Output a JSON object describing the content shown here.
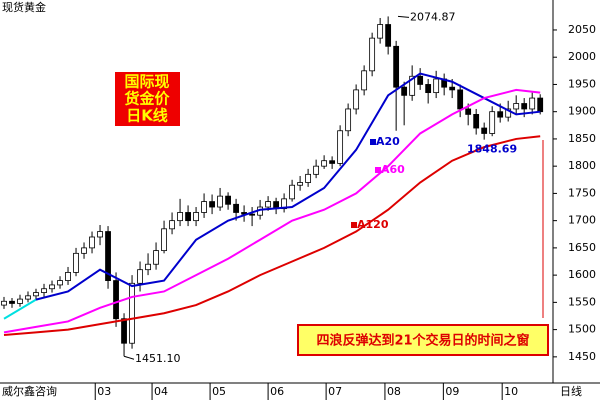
{
  "chart_data": {
    "type": "candlestick",
    "title": "现货黄金",
    "source": "威尔鑫咨询",
    "period": "日线",
    "box_title": [
      "国际现",
      "货金价",
      "日K线"
    ],
    "box_note": "四浪反弹达到21个交易日的时间之窗",
    "annotations": [
      "2074.87",
      "1451.10",
      "1848.69"
    ],
    "ylim": [
      1402,
      2105
    ],
    "yticks": [
      1450,
      1500,
      1550,
      1600,
      1650,
      1700,
      1750,
      1800,
      1850,
      1900,
      1950,
      2000,
      2050
    ],
    "xlim": [
      -0.5,
      68.6
    ],
    "xticks": [
      {
        "value": 11.4,
        "label": "03"
      },
      {
        "value": 18.5,
        "label": "04"
      },
      {
        "value": 25.75,
        "label": "05"
      },
      {
        "value": 33,
        "label": "06"
      },
      {
        "value": 40.25,
        "label": "07"
      },
      {
        "value": 47.6,
        "label": "08"
      },
      {
        "value": 54.9,
        "label": "09"
      },
      {
        "value": 62.25,
        "label": "10"
      }
    ],
    "ohlc": [
      [
        1545,
        1560,
        1538,
        1552
      ],
      [
        1552,
        1558,
        1540,
        1548
      ],
      [
        1548,
        1564,
        1542,
        1556
      ],
      [
        1556,
        1570,
        1550,
        1562
      ],
      [
        1562,
        1575,
        1555,
        1568
      ],
      [
        1568,
        1584,
        1560,
        1575
      ],
      [
        1575,
        1590,
        1568,
        1582
      ],
      [
        1582,
        1598,
        1575,
        1590
      ],
      [
        1590,
        1615,
        1582,
        1605
      ],
      [
        1605,
        1650,
        1598,
        1640
      ],
      [
        1640,
        1660,
        1630,
        1650
      ],
      [
        1650,
        1680,
        1640,
        1670
      ],
      [
        1670,
        1692,
        1655,
        1680
      ],
      [
        1680,
        1690,
        1575,
        1590
      ],
      [
        1590,
        1605,
        1505,
        1520
      ],
      [
        1520,
        1530,
        1451.1,
        1475
      ],
      [
        1475,
        1600,
        1465,
        1585
      ],
      [
        1585,
        1625,
        1570,
        1610
      ],
      [
        1610,
        1640,
        1600,
        1620
      ],
      [
        1620,
        1660,
        1610,
        1645
      ],
      [
        1645,
        1700,
        1640,
        1685
      ],
      [
        1685,
        1715,
        1675,
        1700
      ],
      [
        1700,
        1740,
        1690,
        1715
      ],
      [
        1715,
        1728,
        1690,
        1700
      ],
      [
        1700,
        1725,
        1690,
        1715
      ],
      [
        1715,
        1750,
        1705,
        1735
      ],
      [
        1735,
        1748,
        1712,
        1725
      ],
      [
        1725,
        1760,
        1718,
        1745
      ],
      [
        1745,
        1752,
        1720,
        1730
      ],
      [
        1730,
        1740,
        1700,
        1715
      ],
      [
        1715,
        1728,
        1698,
        1712
      ],
      [
        1712,
        1725,
        1690,
        1710
      ],
      [
        1710,
        1738,
        1702,
        1725
      ],
      [
        1725,
        1745,
        1718,
        1735
      ],
      [
        1735,
        1742,
        1712,
        1722
      ],
      [
        1722,
        1750,
        1715,
        1740
      ],
      [
        1740,
        1775,
        1735,
        1765
      ],
      [
        1765,
        1782,
        1755,
        1770
      ],
      [
        1770,
        1795,
        1762,
        1785
      ],
      [
        1785,
        1812,
        1778,
        1800
      ],
      [
        1800,
        1820,
        1795,
        1810
      ],
      [
        1810,
        1818,
        1795,
        1805
      ],
      [
        1805,
        1875,
        1800,
        1865
      ],
      [
        1865,
        1915,
        1855,
        1905
      ],
      [
        1905,
        1950,
        1895,
        1940
      ],
      [
        1940,
        1985,
        1930,
        1975
      ],
      [
        1975,
        2045,
        1965,
        2035
      ],
      [
        2035,
        2072,
        2025,
        2060
      ],
      [
        2060,
        2074.87,
        2005,
        2020
      ],
      [
        2020,
        2030,
        1865,
        1945
      ],
      [
        1945,
        1955,
        1875,
        1930
      ],
      [
        1930,
        1985,
        1920,
        1965
      ],
      [
        1965,
        1980,
        1940,
        1950
      ],
      [
        1950,
        1960,
        1915,
        1935
      ],
      [
        1935,
        1975,
        1925,
        1960
      ],
      [
        1960,
        1970,
        1930,
        1945
      ],
      [
        1945,
        1960,
        1925,
        1940
      ],
      [
        1940,
        1950,
        1890,
        1905
      ],
      [
        1905,
        1915,
        1875,
        1895
      ],
      [
        1895,
        1905,
        1858,
        1870
      ],
      [
        1870,
        1880,
        1848.69,
        1860
      ],
      [
        1860,
        1910,
        1855,
        1900
      ],
      [
        1900,
        1915,
        1880,
        1890
      ],
      [
        1890,
        1920,
        1882,
        1905
      ],
      [
        1905,
        1930,
        1895,
        1915
      ],
      [
        1915,
        1925,
        1890,
        1905
      ],
      [
        1905,
        1935,
        1895,
        1925
      ],
      [
        1925,
        1932,
        1895,
        1900
      ]
    ],
    "x": [
      0,
      4,
      8,
      12,
      16,
      20,
      24,
      28,
      32,
      36,
      40,
      44,
      48,
      52,
      56,
      60,
      64,
      67
    ],
    "series": [
      {
        "color": "#00e0e0",
        "values": [
          1520,
          1555,
          null,
          null,
          null,
          null,
          null,
          null,
          null,
          null,
          null,
          null,
          null,
          null,
          null,
          null,
          null,
          null
        ]
      },
      {
        "name": "A20",
        "color": "#0000cc",
        "values": [
          null,
          1555,
          1570,
          1610,
          1580,
          1590,
          1665,
          1700,
          1720,
          1725,
          1760,
          1830,
          1930,
          1970,
          1955,
          1925,
          1895,
          1900
        ]
      },
      {
        "name": "A60",
        "color": "#ff00ff",
        "values": [
          1495,
          1505,
          1515,
          1540,
          1560,
          1570,
          1600,
          1630,
          1665,
          1700,
          1720,
          1750,
          1800,
          1860,
          1895,
          1925,
          1940,
          1935
        ]
      },
      {
        "name": "A120",
        "color": "#dd0000",
        "values": [
          1490,
          1495,
          1500,
          1510,
          1520,
          1530,
          1545,
          1570,
          1600,
          1625,
          1650,
          1680,
          1720,
          1770,
          1810,
          1835,
          1850,
          1855
        ]
      }
    ]
  }
}
